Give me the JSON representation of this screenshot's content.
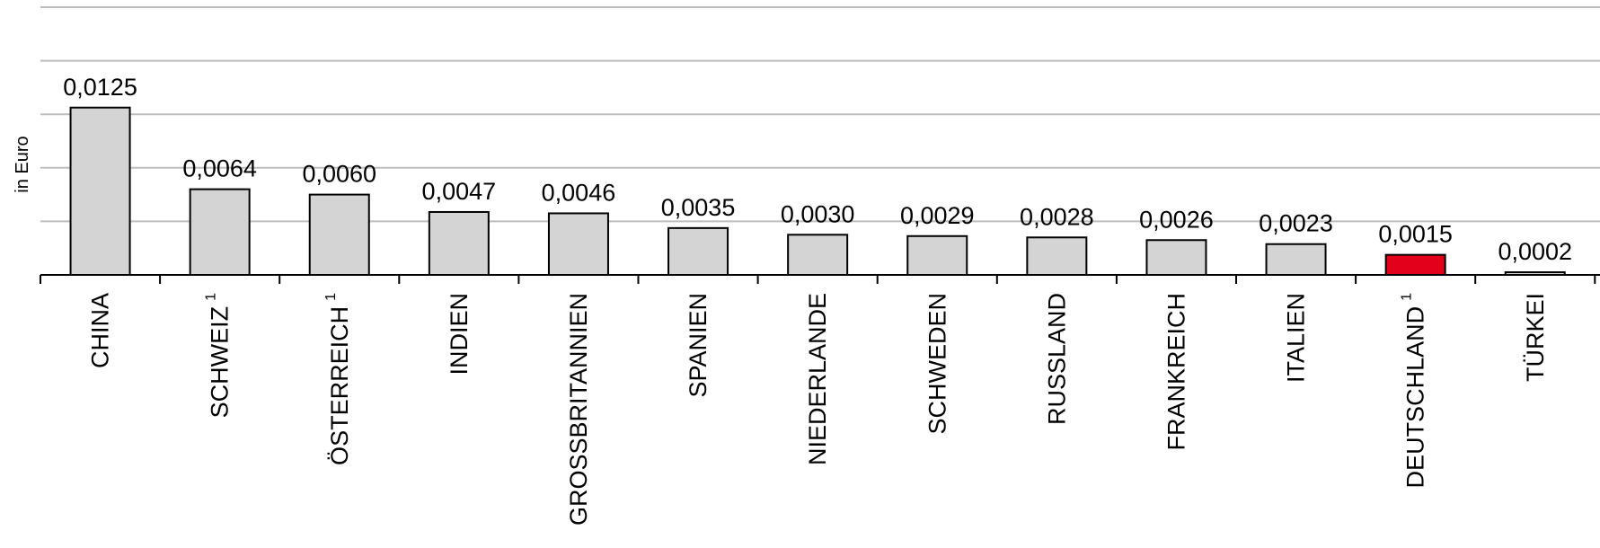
{
  "chart_data": {
    "type": "bar",
    "ylabel": "in Euro",
    "ylim": [
      0,
      0.02
    ],
    "y_gridlines": [
      0.004,
      0.008,
      0.012,
      0.016,
      0.02
    ],
    "y_tick_labels_shown": false,
    "grid": true,
    "legend": "none",
    "categories": [
      {
        "name": "CHINA",
        "note": ""
      },
      {
        "name": "SCHWEIZ",
        "note": "1"
      },
      {
        "name": "ÖSTERREICH",
        "note": "1"
      },
      {
        "name": "INDIEN",
        "note": ""
      },
      {
        "name": "GROSSBRITANNIEN",
        "note": ""
      },
      {
        "name": "SPANIEN",
        "note": ""
      },
      {
        "name": "NIEDERLANDE",
        "note": ""
      },
      {
        "name": "SCHWEDEN",
        "note": ""
      },
      {
        "name": "RUSSLAND",
        "note": ""
      },
      {
        "name": "FRANKREICH",
        "note": ""
      },
      {
        "name": "ITALIEN",
        "note": ""
      },
      {
        "name": "DEUTSCHLAND",
        "note": "1"
      },
      {
        "name": "TÜRKEI",
        "note": ""
      }
    ],
    "values": [
      0.0125,
      0.0064,
      0.006,
      0.0047,
      0.0046,
      0.0035,
      0.003,
      0.0029,
      0.0028,
      0.0026,
      0.0023,
      0.0015,
      0.0002
    ],
    "value_labels": [
      "0,0125",
      "0,0064",
      "0,0060",
      "0,0047",
      "0,0046",
      "0,0035",
      "0,0030",
      "0,0029",
      "0,0028",
      "0,0026",
      "0,0023",
      "0,0015",
      "0,0002"
    ],
    "colors": {
      "default_bar": "#d4d4d4",
      "highlight_bar": "#e2001a",
      "highlight_category": "DEUTSCHLAND",
      "grid": "#bdbdbd",
      "axis": "#000000"
    }
  }
}
